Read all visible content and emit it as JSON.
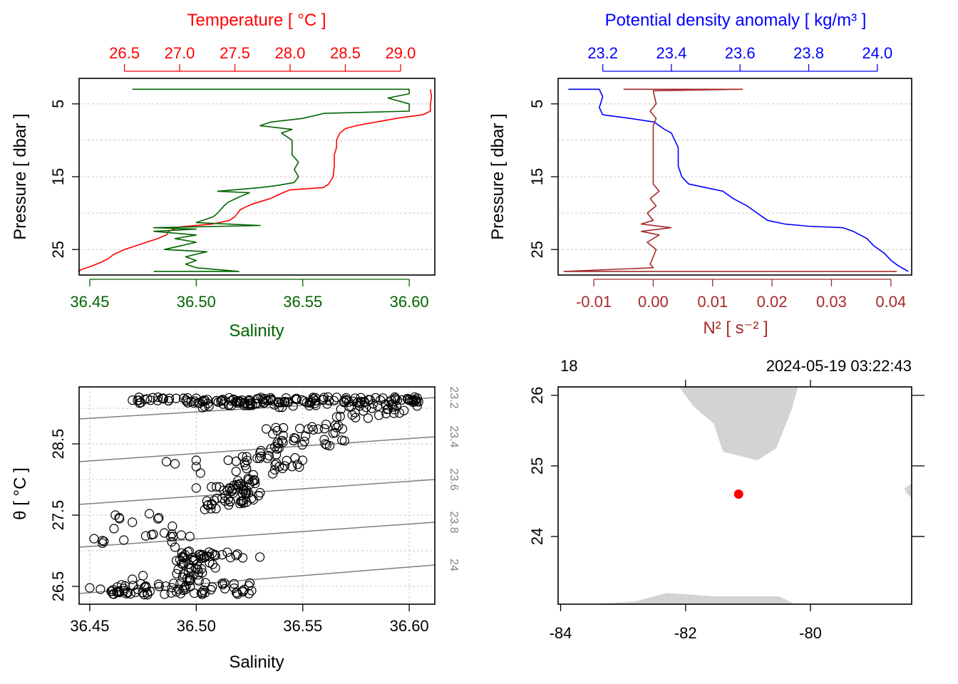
{
  "colors": {
    "temperature": "#ff0000",
    "salinity": "#006400",
    "density": "#0000ff",
    "n2": "#a52a2a",
    "isopycnal": "#808080",
    "land": "#d3d3d3",
    "station": "#ff0000"
  },
  "chart_data": [
    {
      "name": "salinity-temperature-profile",
      "type": "line",
      "title": "Temperature [ °C ]",
      "xlabel": "Salinity",
      "ylabel": "Pressure [ dbar ]",
      "ylim": [
        28.5,
        1.5
      ],
      "y_ticks": [
        "5",
        "15",
        "25"
      ],
      "y_tick_values": [
        5,
        15,
        25
      ],
      "y_grid": [
        5,
        10,
        15,
        20,
        25
      ],
      "x_bottom": {
        "label": "Salinity",
        "lim": [
          36.445,
          36.612
        ],
        "ticks": [
          "36.45",
          "36.50",
          "36.55",
          "36.60"
        ],
        "tick_values": [
          36.45,
          36.5,
          36.55,
          36.6
        ]
      },
      "x_top": {
        "label": "Temperature [ °C ]",
        "lim": [
          26.09,
          29.31
        ],
        "ticks": [
          "26.5",
          "27.0",
          "27.5",
          "28.0",
          "28.5",
          "29.0"
        ],
        "tick_values": [
          26.5,
          27.0,
          27.5,
          28.0,
          28.5,
          29.0
        ]
      },
      "series": [
        {
          "name": "Temperature",
          "axis": "top",
          "points": [
            [
              29.27,
              3.0
            ],
            [
              29.28,
              4.0
            ],
            [
              29.27,
              5.0
            ],
            [
              29.27,
              6.0
            ],
            [
              29.2,
              6.5
            ],
            [
              29.0,
              6.9
            ],
            [
              28.85,
              7.3
            ],
            [
              28.7,
              7.7
            ],
            [
              28.6,
              8.0
            ],
            [
              28.5,
              8.4
            ],
            [
              28.45,
              9.0
            ],
            [
              28.42,
              10.0
            ],
            [
              28.42,
              11.0
            ],
            [
              28.4,
              12.0
            ],
            [
              28.4,
              13.5
            ],
            [
              28.39,
              15.0
            ],
            [
              28.35,
              16.0
            ],
            [
              28.3,
              16.5
            ],
            [
              28.0,
              16.8
            ],
            [
              27.92,
              17.3
            ],
            [
              27.82,
              18.0
            ],
            [
              27.65,
              18.8
            ],
            [
              27.55,
              19.5
            ],
            [
              27.5,
              20.5
            ],
            [
              27.45,
              21.0
            ],
            [
              27.3,
              21.5
            ],
            [
              27.0,
              21.9
            ],
            [
              26.9,
              22.5
            ],
            [
              26.88,
              23.0
            ],
            [
              26.8,
              23.5
            ],
            [
              26.7,
              24.0
            ],
            [
              26.6,
              24.5
            ],
            [
              26.5,
              25.0
            ],
            [
              26.4,
              25.7
            ],
            [
              26.35,
              26.3
            ],
            [
              26.28,
              26.8
            ],
            [
              26.2,
              27.3
            ],
            [
              26.12,
              27.7
            ],
            [
              26.08,
              28.0
            ]
          ]
        },
        {
          "name": "Salinity",
          "axis": "bottom",
          "points": [
            [
              36.47,
              3.0
            ],
            [
              36.6,
              3.0
            ],
            [
              36.6,
              3.6
            ],
            [
              36.59,
              4.2
            ],
            [
              36.6,
              5.0
            ],
            [
              36.6,
              6.0
            ],
            [
              36.56,
              6.3
            ],
            [
              36.55,
              7.0
            ],
            [
              36.535,
              7.5
            ],
            [
              36.53,
              8.0
            ],
            [
              36.545,
              8.5
            ],
            [
              36.54,
              9.0
            ],
            [
              36.545,
              10.0
            ],
            [
              36.545,
              11.0
            ],
            [
              36.545,
              12.0
            ],
            [
              36.548,
              13.0
            ],
            [
              36.546,
              14.0
            ],
            [
              36.548,
              15.0
            ],
            [
              36.546,
              15.8
            ],
            [
              36.538,
              16.2
            ],
            [
              36.53,
              16.5
            ],
            [
              36.51,
              17.0
            ],
            [
              36.525,
              17.2
            ],
            [
              36.52,
              17.8
            ],
            [
              36.515,
              18.5
            ],
            [
              36.513,
              19.0
            ],
            [
              36.51,
              20.0
            ],
            [
              36.508,
              20.5
            ],
            [
              36.5,
              21.3
            ],
            [
              36.53,
              21.7
            ],
            [
              36.48,
              22.0
            ],
            [
              36.5,
              22.2
            ],
            [
              36.48,
              22.5
            ],
            [
              36.5,
              23.0
            ],
            [
              36.49,
              23.5
            ],
            [
              36.5,
              24.0
            ],
            [
              36.485,
              25.0
            ],
            [
              36.505,
              25.3
            ],
            [
              36.495,
              26.0
            ],
            [
              36.5,
              26.5
            ],
            [
              36.495,
              27.0
            ],
            [
              36.5,
              27.5
            ],
            [
              36.52,
              28.0
            ],
            [
              36.48,
              28.0
            ]
          ]
        }
      ]
    },
    {
      "name": "density-n2-profile",
      "type": "line",
      "title": "Potential density anomaly [ kg/m³ ]",
      "xlabel": "N² [ s⁻² ]",
      "ylabel": "Pressure [ dbar ]",
      "ylim": [
        28.5,
        1.5
      ],
      "y_ticks": [
        "5",
        "15",
        "25"
      ],
      "y_tick_values": [
        5,
        15,
        25
      ],
      "y_grid": [
        5,
        10,
        15,
        20,
        25
      ],
      "x_bottom": {
        "label": "N² [ s⁻² ]",
        "lim": [
          -0.016,
          0.0435
        ],
        "ticks": [
          "-0.01",
          "0.00",
          "0.01",
          "0.02",
          "0.03",
          "0.04"
        ],
        "tick_values": [
          -0.01,
          0.0,
          0.01,
          0.02,
          0.03,
          0.04
        ]
      },
      "x_top": {
        "label": "Potential density anomaly [ kg/m³ ]",
        "lim": [
          23.07,
          24.1
        ],
        "ticks": [
          "23.2",
          "23.4",
          "23.6",
          "23.8",
          "24.0"
        ],
        "tick_values": [
          23.2,
          23.4,
          23.6,
          23.8,
          24.0
        ]
      },
      "series": [
        {
          "name": "Potential density anomaly",
          "axis": "top",
          "points": [
            [
              23.1,
              3.0
            ],
            [
              23.19,
              3.0
            ],
            [
              23.2,
              4.0
            ],
            [
              23.19,
              5.5
            ],
            [
              23.2,
              6.5
            ],
            [
              23.28,
              7.0
            ],
            [
              23.35,
              7.5
            ],
            [
              23.38,
              8.5
            ],
            [
              23.4,
              9.0
            ],
            [
              23.41,
              10.0
            ],
            [
              23.42,
              11.0
            ],
            [
              23.42,
              12.0
            ],
            [
              23.42,
              13.5
            ],
            [
              23.43,
              15.0
            ],
            [
              23.45,
              16.0
            ],
            [
              23.5,
              16.5
            ],
            [
              23.55,
              17.0
            ],
            [
              23.58,
              18.0
            ],
            [
              23.62,
              19.0
            ],
            [
              23.65,
              20.0
            ],
            [
              23.68,
              21.0
            ],
            [
              23.73,
              21.5
            ],
            [
              23.8,
              21.8
            ],
            [
              23.9,
              22.0
            ],
            [
              23.93,
              22.5
            ],
            [
              23.97,
              23.5
            ],
            [
              23.99,
              24.5
            ],
            [
              24.02,
              25.5
            ],
            [
              24.04,
              26.5
            ],
            [
              24.06,
              27.2
            ],
            [
              24.09,
              28.0
            ]
          ]
        },
        {
          "name": "N²",
          "axis": "bottom",
          "points": [
            [
              -0.005,
              3.0
            ],
            [
              0.015,
              3.0
            ],
            [
              0.0,
              3.2
            ],
            [
              0.0005,
              5.0
            ],
            [
              -0.0005,
              6.0
            ],
            [
              0.0005,
              7.0
            ],
            [
              0.0,
              8.0
            ],
            [
              0.0,
              10.0
            ],
            [
              0.0,
              12.0
            ],
            [
              0.0,
              14.0
            ],
            [
              0.0,
              16.0
            ],
            [
              0.001,
              17.0
            ],
            [
              -0.0005,
              18.0
            ],
            [
              0.0005,
              19.0
            ],
            [
              -0.001,
              20.0
            ],
            [
              0.0,
              21.0
            ],
            [
              -0.002,
              21.5
            ],
            [
              0.003,
              22.0
            ],
            [
              -0.002,
              22.5
            ],
            [
              0.001,
              23.0
            ],
            [
              -0.001,
              24.0
            ],
            [
              0.0005,
              25.0
            ],
            [
              0.0,
              26.0
            ],
            [
              -0.0005,
              27.0
            ],
            [
              0.0,
              27.5
            ],
            [
              -0.015,
              28.0
            ],
            [
              0.041,
              28.0
            ]
          ]
        }
      ]
    },
    {
      "name": "ts-diagram",
      "type": "scatter",
      "xlabel": "Salinity",
      "ylabel": "θ [ °C ]",
      "xlim": [
        36.445,
        36.612
      ],
      "ylim": [
        26.25,
        29.3
      ],
      "x_ticks": [
        "36.45",
        "36.50",
        "36.55",
        "36.60"
      ],
      "x_tick_values": [
        36.45,
        36.5,
        36.55,
        36.6
      ],
      "y_ticks": [
        "26.5",
        "27.5",
        "28.5"
      ],
      "y_tick_values": [
        26.5,
        27.5,
        28.5
      ],
      "y_grid": [
        26.5,
        27.0,
        27.5,
        28.0,
        28.5,
        29.0
      ],
      "isopycnals": [
        {
          "label": "23.2",
          "t_left": 28.85,
          "t_right": 29.15
        },
        {
          "label": "23.4",
          "t_left": 28.25,
          "t_right": 28.6
        },
        {
          "label": "23.6",
          "t_left": 27.65,
          "t_right": 28.0
        },
        {
          "label": "23.8",
          "t_left": 27.05,
          "t_right": 27.4
        },
        {
          "label": "24",
          "t_left": 26.4,
          "t_right": 26.8
        }
      ],
      "clusters": [
        {
          "s": [
            36.47,
            36.605
          ],
          "t": [
            29.07,
            29.16
          ],
          "n": 140,
          "trend": 0.06
        },
        {
          "s": [
            36.5,
            36.605
          ],
          "t": [
            29.0,
            29.1
          ],
          "n": 40,
          "trend": 0.05
        },
        {
          "s": [
            36.56,
            36.6
          ],
          "t": [
            28.85,
            29.05
          ],
          "n": 20,
          "trend": 0.1
        },
        {
          "s": [
            36.53,
            36.57
          ],
          "t": [
            28.4,
            28.8
          ],
          "n": 40,
          "trend": 0.2
        },
        {
          "s": [
            36.515,
            36.55
          ],
          "t": [
            28.0,
            28.45
          ],
          "n": 30,
          "trend": 0.25
        },
        {
          "s": [
            36.505,
            36.53
          ],
          "t": [
            27.55,
            28.05
          ],
          "n": 60,
          "trend": 0.3
        },
        {
          "s": [
            36.455,
            36.49
          ],
          "t": [
            27.1,
            27.5
          ],
          "n": 14,
          "trend": 0.0
        },
        {
          "s": [
            36.49,
            36.53
          ],
          "t": [
            26.9,
            27.0
          ],
          "n": 22,
          "trend": 0.0
        },
        {
          "s": [
            36.49,
            36.51
          ],
          "t": [
            26.55,
            26.95
          ],
          "n": 40,
          "trend": 0.0
        },
        {
          "s": [
            36.46,
            36.53
          ],
          "t": [
            26.38,
            26.55
          ],
          "n": 70,
          "trend": 0.05
        }
      ],
      "points": [
        [
          36.45,
          26.48
        ],
        [
          36.452,
          27.17
        ],
        [
          36.462,
          27.5
        ],
        [
          36.464,
          27.45
        ],
        [
          36.466,
          27.15
        ],
        [
          36.47,
          27.4
        ],
        [
          36.478,
          27.52
        ],
        [
          36.485,
          27.25
        ],
        [
          36.488,
          27.2
        ],
        [
          36.49,
          27.05
        ],
        [
          36.493,
          27.22
        ],
        [
          36.497,
          27.2
        ],
        [
          36.5,
          28.27
        ],
        [
          36.5,
          28.18
        ],
        [
          36.502,
          28.09
        ],
        [
          36.505,
          27.7
        ],
        [
          36.504,
          27.58
        ],
        [
          36.5,
          27.88
        ],
        [
          36.486,
          28.25
        ],
        [
          36.49,
          28.22
        ],
        [
          36.47,
          26.6
        ],
        [
          36.475,
          26.65
        ],
        [
          36.46,
          26.43
        ],
        [
          36.455,
          26.46
        ]
      ]
    },
    {
      "name": "station-map",
      "type": "scatter",
      "xlim": [
        -84.04,
        -78.38
      ],
      "ylim": [
        23.04,
        26.12
      ],
      "x_ticks": [
        "-84",
        "-82",
        "-80"
      ],
      "x_tick_values": [
        -84,
        -82,
        -80
      ],
      "y_ticks": [
        "24",
        "25",
        "26"
      ],
      "y_tick_values": [
        24,
        25,
        26
      ],
      "top_left_label": "18",
      "top_right_label": "2024-05-19 03:22:43",
      "land": [
        [
          [
            -82.1,
            26.12
          ],
          [
            -81.88,
            25.85
          ],
          [
            -81.55,
            25.6
          ],
          [
            -81.4,
            25.2
          ],
          [
            -80.85,
            25.08
          ],
          [
            -80.55,
            25.25
          ],
          [
            -80.3,
            25.8
          ],
          [
            -80.2,
            26.12
          ]
        ],
        [
          [
            -83.5,
            23.04
          ],
          [
            -82.8,
            23.08
          ],
          [
            -82.3,
            23.2
          ],
          [
            -81.5,
            23.15
          ],
          [
            -80.5,
            23.15
          ],
          [
            -80.25,
            23.04
          ]
        ],
        [
          [
            -78.38,
            24.55
          ],
          [
            -78.45,
            24.6
          ],
          [
            -78.5,
            24.68
          ],
          [
            -78.38,
            24.75
          ]
        ]
      ],
      "station": {
        "lon": -81.15,
        "lat": 24.6
      }
    }
  ]
}
